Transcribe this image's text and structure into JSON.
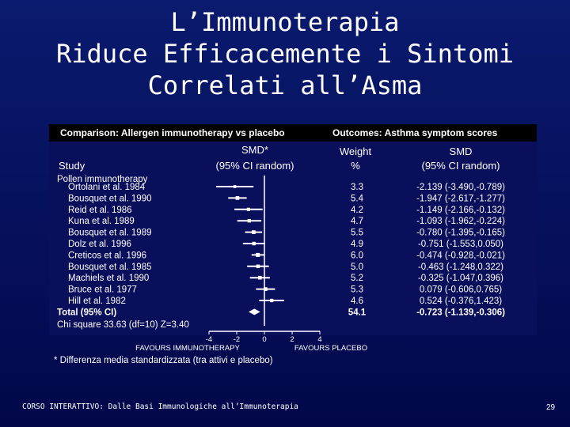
{
  "title": {
    "line1": "L’Immunoterapia",
    "line2": "Riduce Efficacemente i Sintomi",
    "line3": "Correlati all’Asma"
  },
  "header": {
    "comparison": "Comparison: Allergen immunotherapy vs placebo",
    "outcomes": "Outcomes: Asthma symptom scores"
  },
  "columns": {
    "study": "Study",
    "smd_line1": "SMD*",
    "smd_line2": "(95% CI random)",
    "weight_line1": "Weight",
    "weight_line2": "%",
    "ci_line1": "SMD",
    "ci_line2": "(95% CI random)"
  },
  "chart_data": {
    "type": "forest",
    "group_label": "Pollen immunotherapy",
    "studies": [
      {
        "name": "Ortolani et al. 1984",
        "smd": -2.139,
        "lo": -3.49,
        "hi": -0.789,
        "weight": "3.3",
        "ci_text": "-2.139 (-3.490,-0.789)"
      },
      {
        "name": "Bousquet et al. 1990",
        "smd": -1.947,
        "lo": -2.617,
        "hi": -1.277,
        "weight": "5.4",
        "ci_text": "-1.947 (-2.617,-1.277)"
      },
      {
        "name": "Reid et al. 1986",
        "smd": -1.149,
        "lo": -2.166,
        "hi": -0.132,
        "weight": "4.2",
        "ci_text": "-1.149 (-2.166,-0.132)"
      },
      {
        "name": "Kuna et al. 1989",
        "smd": -1.093,
        "lo": -1.962,
        "hi": -0.224,
        "weight": "4.7",
        "ci_text": "-1.093 (-1.962,-0.224)"
      },
      {
        "name": "Bousquet et al. 1989",
        "smd": -0.78,
        "lo": -1.395,
        "hi": -0.165,
        "weight": "5.5",
        "ci_text": "-0.780 (-1.395,-0.165)"
      },
      {
        "name": "Dolz et al. 1996",
        "smd": -0.751,
        "lo": -1.553,
        "hi": 0.05,
        "weight": "4.9",
        "ci_text": "-0.751 (-1.553,0.050)"
      },
      {
        "name": "Creticos et al. 1996",
        "smd": -0.474,
        "lo": -0.928,
        "hi": -0.021,
        "weight": "6.0",
        "ci_text": "-0.474 (-0.928,-0.021)"
      },
      {
        "name": "Bousquet et al. 1985",
        "smd": -0.463,
        "lo": -1.248,
        "hi": 0.322,
        "weight": "5.0",
        "ci_text": "-0.463 (-1.248,0.322)"
      },
      {
        "name": "Machiels et al. 1990",
        "smd": -0.325,
        "lo": -1.047,
        "hi": 0.396,
        "weight": "5.2",
        "ci_text": "-0.325 (-1.047,0.396)"
      },
      {
        "name": "Bruce et al. 1977",
        "smd": 0.079,
        "lo": -0.606,
        "hi": 0.765,
        "weight": "5.3",
        "ci_text": "0.079 (-0.606,0.765)"
      },
      {
        "name": "Hill et al. 1982",
        "smd": 0.524,
        "lo": -0.376,
        "hi": 1.423,
        "weight": "4.6",
        "ci_text": "0.524 (-0.376,1.423)"
      }
    ],
    "total": {
      "name": "Total (95% CI)",
      "smd": -0.723,
      "lo": -1.139,
      "hi": -0.306,
      "weight": "54.1",
      "ci_text": "-0.723 (-1.139,-0.306)"
    },
    "heterogeneity": "Chi square 33.63 (df=10) Z=3.40",
    "x_ticks": [
      "-4",
      "-2",
      "0",
      "2",
      "4"
    ],
    "xlim": [
      -4,
      4
    ],
    "favours_left": "FAVOURS IMMUNOTHERAPY",
    "favours_right": "FAVOURS PLACEBO"
  },
  "footnote": "* Differenza media standardizzata (tra attivi e placebo)",
  "footer": "CORSO INTERATTIVO: Dalle Basi Immunologiche all’Immunoterapia",
  "page_number": "29"
}
